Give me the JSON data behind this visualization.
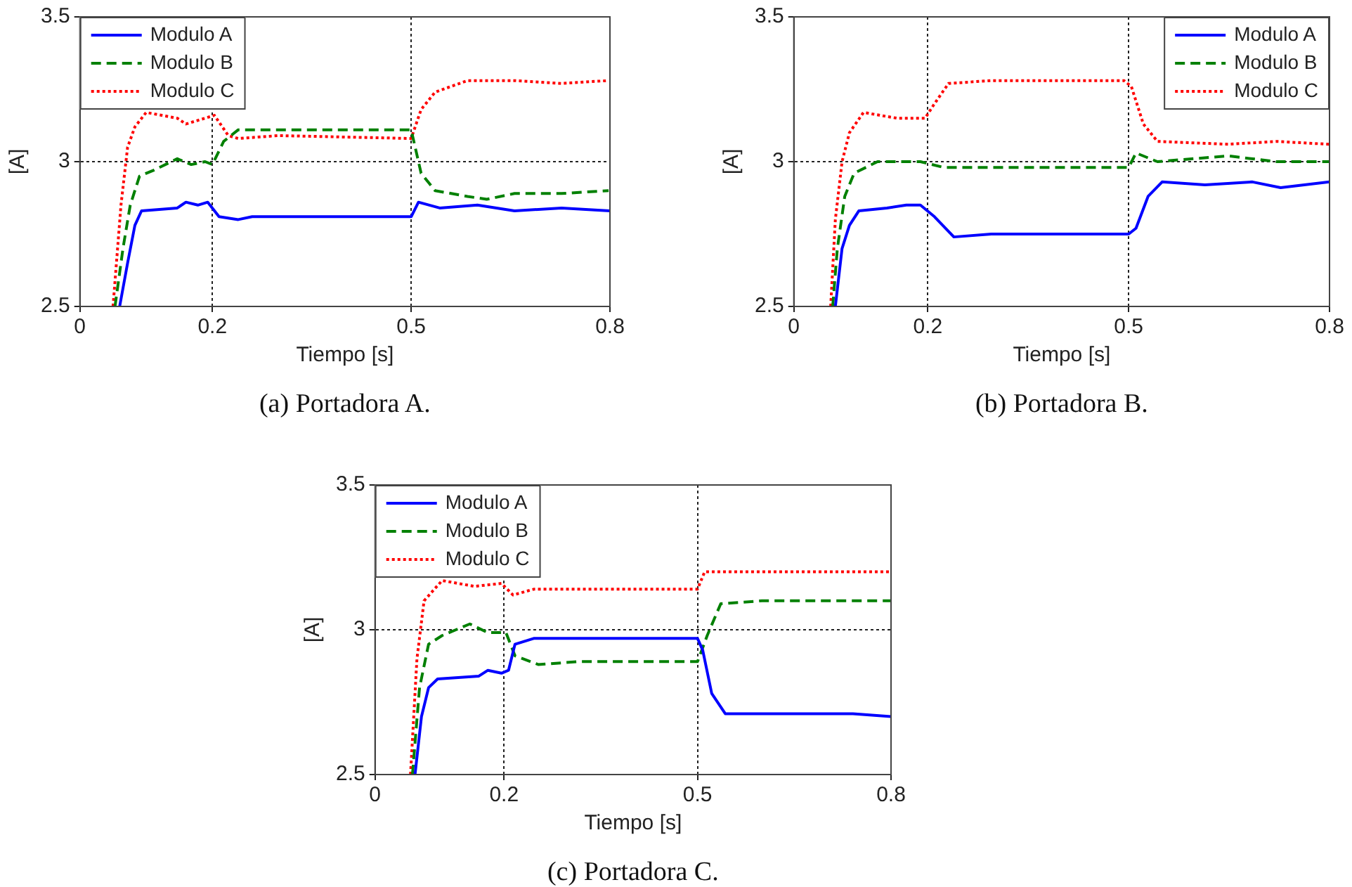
{
  "chart_data": [
    {
      "type": "line",
      "xlabel": "Tiempo [s]",
      "ylabel": "[A]",
      "xlim": [
        0,
        0.8
      ],
      "ylim": [
        2.5,
        3.5
      ],
      "xticks": [
        0,
        0.2,
        0.5,
        0.8
      ],
      "yticks": [
        2.5,
        3,
        3.5
      ],
      "grid": true,
      "legend": "top left",
      "annotations": [
        "(a) Portadora A."
      ],
      "series": [
        {
          "name": "Modulo A",
          "color": "#0000ff",
          "line_style": "solid",
          "x": [
            0.06,
            0.072,
            0.083,
            0.093,
            0.147,
            0.16,
            0.178,
            0.193,
            0.21,
            0.239,
            0.26,
            0.3,
            0.5,
            0.511,
            0.543,
            0.6,
            0.656,
            0.727,
            0.8
          ],
          "values": [
            2.5,
            2.65,
            2.78,
            2.83,
            2.84,
            2.86,
            2.85,
            2.86,
            2.81,
            2.8,
            2.81,
            2.81,
            2.81,
            2.86,
            2.84,
            2.85,
            2.83,
            2.84,
            2.83
          ]
        },
        {
          "name": "Modulo B",
          "color": "#008000",
          "line_style": "dashed",
          "x": [
            0.053,
            0.065,
            0.076,
            0.09,
            0.111,
            0.147,
            0.168,
            0.189,
            0.2,
            0.217,
            0.239,
            0.3,
            0.5,
            0.515,
            0.536,
            0.585,
            0.614,
            0.656,
            0.727,
            0.798
          ],
          "values": [
            2.5,
            2.7,
            2.85,
            2.95,
            2.97,
            3.01,
            2.99,
            3.0,
            2.99,
            3.07,
            3.11,
            3.11,
            3.11,
            2.96,
            2.9,
            2.88,
            2.87,
            2.89,
            2.89,
            2.9
          ]
        },
        {
          "name": "Modulo C",
          "color": "#ff0000",
          "line_style": "dotted",
          "x": [
            0.05,
            0.062,
            0.072,
            0.083,
            0.1,
            0.147,
            0.16,
            0.203,
            0.224,
            0.239,
            0.3,
            0.5,
            0.515,
            0.536,
            0.585,
            0.656,
            0.727,
            0.798
          ],
          "values": [
            2.5,
            2.85,
            3.05,
            3.12,
            3.17,
            3.15,
            3.13,
            3.16,
            3.09,
            3.08,
            3.09,
            3.08,
            3.18,
            3.24,
            3.28,
            3.28,
            3.27,
            3.28
          ]
        }
      ]
    },
    {
      "type": "line",
      "xlabel": "Tiempo [s]",
      "ylabel": "[A]",
      "xlim": [
        0,
        0.8
      ],
      "ylim": [
        2.5,
        3.5
      ],
      "xticks": [
        0,
        0.2,
        0.5,
        0.8
      ],
      "yticks": [
        2.5,
        3,
        3.5
      ],
      "grid": true,
      "legend": "top right",
      "annotations": [
        "(b) Portadora B."
      ],
      "series": [
        {
          "name": "Modulo A",
          "color": "#0000ff",
          "line_style": "solid",
          "x": [
            0.062,
            0.072,
            0.083,
            0.097,
            0.139,
            0.168,
            0.189,
            0.21,
            0.239,
            0.295,
            0.5,
            0.511,
            0.529,
            0.55,
            0.614,
            0.685,
            0.727,
            0.8
          ],
          "values": [
            2.5,
            2.7,
            2.78,
            2.83,
            2.84,
            2.85,
            2.85,
            2.81,
            2.74,
            2.75,
            2.75,
            2.77,
            2.88,
            2.93,
            2.92,
            2.93,
            2.91,
            2.93
          ]
        },
        {
          "name": "Modulo B",
          "color": "#008000",
          "line_style": "dashed",
          "x": [
            0.058,
            0.065,
            0.076,
            0.09,
            0.125,
            0.189,
            0.224,
            0.295,
            0.5,
            0.511,
            0.543,
            0.649,
            0.72,
            0.8
          ],
          "values": [
            2.5,
            2.7,
            2.88,
            2.96,
            3.0,
            3.0,
            2.98,
            2.98,
            2.98,
            3.03,
            3.0,
            3.02,
            3.0,
            3.0
          ]
        },
        {
          "name": "Modulo C",
          "color": "#ff0000",
          "line_style": "dotted",
          "x": [
            0.055,
            0.062,
            0.072,
            0.083,
            0.104,
            0.154,
            0.196,
            0.21,
            0.231,
            0.295,
            0.493,
            0.504,
            0.522,
            0.543,
            0.649,
            0.72,
            0.8
          ],
          "values": [
            2.5,
            2.8,
            3.0,
            3.1,
            3.17,
            3.15,
            3.15,
            3.2,
            3.27,
            3.28,
            3.28,
            3.26,
            3.13,
            3.07,
            3.06,
            3.07,
            3.06
          ]
        }
      ]
    },
    {
      "type": "line",
      "xlabel": "Tiempo [s]",
      "ylabel": "[A]",
      "xlim": [
        0,
        0.8
      ],
      "ylim": [
        2.5,
        3.5
      ],
      "xticks": [
        0,
        0.2,
        0.5,
        0.8
      ],
      "yticks": [
        2.5,
        3,
        3.5
      ],
      "grid": true,
      "legend": "top left",
      "annotations": [
        "(c) Portadora C."
      ],
      "series": [
        {
          "name": "Modulo A",
          "color": "#0000ff",
          "line_style": "solid",
          "x": [
            0.062,
            0.072,
            0.083,
            0.097,
            0.161,
            0.175,
            0.196,
            0.207,
            0.217,
            0.246,
            0.316,
            0.5,
            0.508,
            0.522,
            0.543,
            0.6,
            0.67,
            0.741,
            0.8
          ],
          "values": [
            2.5,
            2.7,
            2.8,
            2.83,
            2.84,
            2.86,
            2.85,
            2.86,
            2.95,
            2.97,
            2.97,
            2.97,
            2.93,
            2.78,
            2.71,
            2.71,
            2.71,
            2.71,
            2.7
          ]
        },
        {
          "name": "Modulo B",
          "color": "#008000",
          "line_style": "dashed",
          "x": [
            0.058,
            0.069,
            0.083,
            0.104,
            0.147,
            0.175,
            0.203,
            0.217,
            0.253,
            0.316,
            0.5,
            0.515,
            0.536,
            0.6,
            0.67,
            0.8
          ],
          "values": [
            2.5,
            2.8,
            2.95,
            2.98,
            3.02,
            2.99,
            2.99,
            2.91,
            2.88,
            2.89,
            2.89,
            2.98,
            3.09,
            3.1,
            3.1,
            3.1
          ]
        },
        {
          "name": "Modulo C",
          "color": "#ff0000",
          "line_style": "dotted",
          "x": [
            0.055,
            0.065,
            0.076,
            0.104,
            0.154,
            0.196,
            0.214,
            0.246,
            0.5,
            0.511,
            0.6,
            0.8
          ],
          "values": [
            2.5,
            2.9,
            3.1,
            3.17,
            3.15,
            3.16,
            3.12,
            3.14,
            3.14,
            3.2,
            3.2,
            3.2
          ]
        }
      ]
    }
  ]
}
